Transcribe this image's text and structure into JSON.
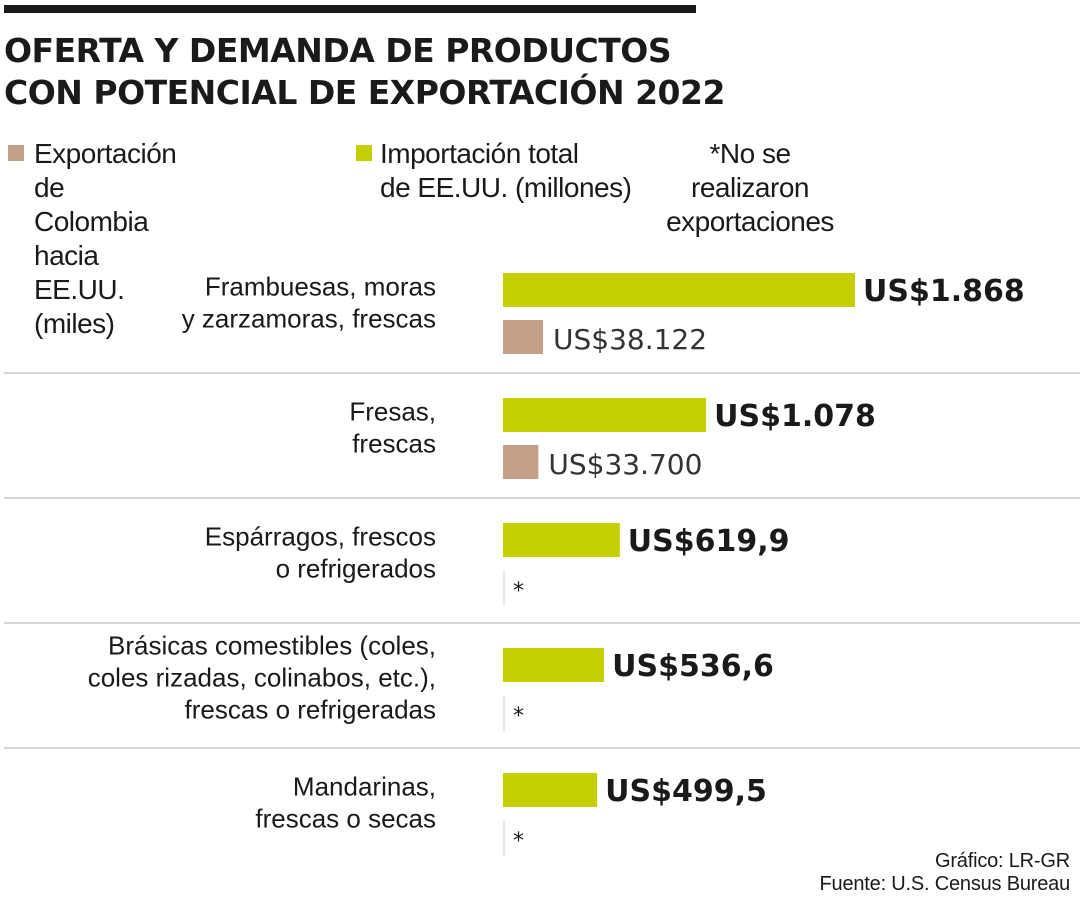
{
  "title_line1": "OFERTA Y DEMANDA DE PRODUCTOS",
  "title_line2": "CON POTENCIAL DE EXPORTACIÓN 2022",
  "legend": {
    "export_label": "Exportación de Colombia\nhacia EE.UU. (miles)",
    "import_label": "Importación total\nde EE.UU. (millones)",
    "note": "*No se realizaron\nexportaciones"
  },
  "colors": {
    "import": "#c6d000",
    "export": "#c4a08a",
    "divider": "#c8c8c8",
    "title": "#1a1a1a"
  },
  "chart_data": {
    "type": "bar",
    "orientation": "horizontal",
    "title": "OFERTA Y DEMANDA DE PRODUCTOS CON POTENCIAL DE EXPORTACIÓN 2022",
    "categories": [
      [
        "Frambuesas, moras",
        "y zarzamoras, frescas"
      ],
      [
        "Fresas,",
        "frescas"
      ],
      [
        "Espárragos, frescos",
        "o refrigerados"
      ],
      [
        "Brásicas comestibles (coles,",
        "coles rizadas, colinabos, etc.),",
        "frescas o refrigeradas"
      ],
      [
        "Mandarinas,",
        "frescas o secas"
      ]
    ],
    "series": [
      {
        "name": "Importación total de EE.UU. (millones)",
        "values": [
          1868,
          1078,
          619.9,
          536.6,
          499.5
        ],
        "labels": [
          "US$1.868",
          "US$1.078",
          "US$619,9",
          "US$536,6",
          "US$499,5"
        ]
      },
      {
        "name": "Exportación de Colombia hacia EE.UU. (miles)",
        "values": [
          38122,
          33700,
          null,
          null,
          null
        ],
        "labels": [
          "US$38.122",
          "US$33.700",
          "*",
          "*",
          "*"
        ]
      }
    ]
  },
  "footer": {
    "credit": "Gráfico: LR-GR",
    "source": "Fuente: U.S. Census Bureau"
  }
}
